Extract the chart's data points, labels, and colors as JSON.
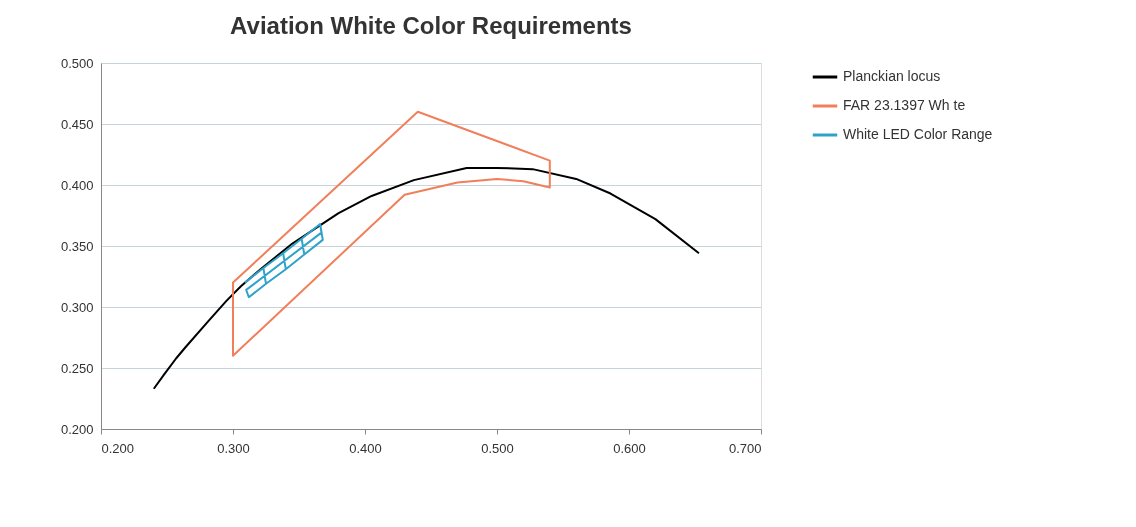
{
  "chart_data": {
    "type": "line",
    "title": "Aviation White Color Requirements",
    "xlim": [
      0.2,
      0.7
    ],
    "ylim": [
      0.2,
      0.5
    ],
    "xticks": [
      {
        "value": 0.2,
        "label": "0.200"
      },
      {
        "value": 0.3,
        "label": "0.300"
      },
      {
        "value": 0.4,
        "label": "0.400"
      },
      {
        "value": 0.5,
        "label": "0.500"
      },
      {
        "value": 0.6,
        "label": "0.600"
      },
      {
        "value": 0.7,
        "label": "0.700"
      }
    ],
    "yticks": [
      {
        "value": 0.2,
        "label": "0.200"
      },
      {
        "value": 0.25,
        "label": "0.250"
      },
      {
        "value": 0.3,
        "label": "0.300"
      },
      {
        "value": 0.35,
        "label": "0.350"
      },
      {
        "value": 0.4,
        "label": "0.400"
      },
      {
        "value": 0.45,
        "label": "0.450"
      },
      {
        "value": 0.5,
        "label": "0.500"
      }
    ],
    "grid": "y",
    "legend": "right",
    "marker": "none",
    "line_style": "solid",
    "series": [
      {
        "name": "Planckian locus",
        "color": "#000000",
        "x": [
          0.24,
          0.248,
          0.257,
          0.264,
          0.281,
          0.295,
          0.306,
          0.322,
          0.345,
          0.38,
          0.405,
          0.437,
          0.477,
          0.5,
          0.527,
          0.56,
          0.586,
          0.62,
          0.653
        ],
        "values": [
          0.233,
          0.245,
          0.258,
          0.267,
          0.288,
          0.305,
          0.317,
          0.332,
          0.352,
          0.377,
          0.391,
          0.404,
          0.414,
          0.414,
          0.413,
          0.405,
          0.393,
          0.372,
          0.344
        ]
      },
      {
        "name": "FAR 23.1397 Wh te",
        "color": "#f07f5a",
        "x": [
          0.3,
          0.3,
          0.43,
          0.47,
          0.5,
          0.52,
          0.54,
          0.54,
          0.44,
          0.3,
          0.3
        ],
        "values": [
          0.32,
          0.26,
          0.392,
          0.402,
          0.405,
          0.403,
          0.398,
          0.42,
          0.46,
          0.32,
          0.26
        ]
      },
      {
        "name": "White LED Color Range",
        "color": "#2ea2c9",
        "x": [
          0.309,
          0.323,
          0.338,
          0.352,
          0.366,
          0.368,
          0.354,
          0.34,
          0.325,
          0.312,
          0.31,
          0.367,
          0.366,
          0.352,
          0.354,
          0.34,
          0.338,
          0.323,
          0.325
        ],
        "values": [
          0.32,
          0.332,
          0.344,
          0.356,
          0.368,
          0.355,
          0.343,
          0.331,
          0.319,
          0.308,
          0.314,
          0.361,
          0.368,
          0.356,
          0.343,
          0.331,
          0.344,
          0.332,
          0.319
        ]
      }
    ]
  }
}
